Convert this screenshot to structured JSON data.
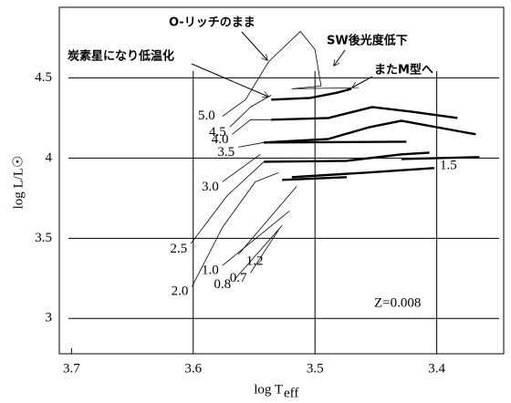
{
  "chart_data": {
    "type": "line",
    "x_label": "log T",
    "x_label_sub": "eff",
    "y_label": "log L/L☉",
    "xlim": [
      3.71,
      3.345
    ],
    "ylim": [
      2.78,
      4.94
    ],
    "xticks": [
      3.7,
      3.6,
      3.5,
      3.4
    ],
    "yticks": [
      3,
      3.5,
      4,
      4.5
    ],
    "grid": true,
    "annotations": [
      "O-リッチのまま",
      "SW後光度低下",
      "炭素星になり低温化",
      "またM型へ",
      "Z=0.008"
    ],
    "series": [
      {
        "name": "5.0",
        "color": "#000000",
        "line_width": "thin",
        "x": [
          3.576,
          3.557,
          3.538,
          3.512,
          3.5,
          3.495,
          3.519,
          3.47
        ],
        "y": [
          4.261,
          4.364,
          4.602,
          4.79,
          4.676,
          4.449,
          4.432,
          4.438
        ]
      },
      {
        "color": "#000000",
        "line_width": "thick",
        "x": [
          3.536,
          3.504,
          3.481,
          3.47
        ],
        "y": [
          4.364,
          4.375,
          4.409,
          4.432
        ]
      },
      {
        "name": "4.5",
        "color": "#000000",
        "line_width": "thin",
        "x": [
          3.57,
          3.553,
          3.536
        ],
        "y": [
          4.193,
          4.318,
          4.392
        ]
      },
      {
        "name": "4.0",
        "color": "#000000",
        "line_width": "thin",
        "x": [
          3.568,
          3.553,
          3.536
        ],
        "y": [
          4.148,
          4.239,
          4.239
        ]
      },
      {
        "color": "#000000",
        "line_width": "thick",
        "x": [
          3.536,
          3.489,
          3.453,
          3.421,
          3.383
        ],
        "y": [
          4.239,
          4.25,
          4.318,
          4.29,
          4.25
        ]
      },
      {
        "name": "3.5",
        "color": "#000000",
        "line_width": "thin",
        "x": [
          3.563,
          3.542
        ],
        "y": [
          4.068,
          4.097
        ]
      },
      {
        "color": "#000000",
        "line_width": "thick",
        "x": [
          3.542,
          3.489,
          3.455,
          3.429,
          3.368
        ],
        "y": [
          4.097,
          4.119,
          4.193,
          4.233,
          4.148
        ]
      },
      {
        "color": "#000000",
        "line_width": "thick",
        "x": [
          3.542,
          3.425
        ],
        "y": [
          4.097,
          4.102
        ]
      },
      {
        "name": "3.0",
        "color": "#000000",
        "line_width": "thin",
        "x": [
          3.576,
          3.545
        ],
        "y": [
          3.852,
          4.023
        ]
      },
      {
        "color": "#000000",
        "line_width": "thick",
        "x": [
          3.542,
          3.474,
          3.429,
          3.406
        ],
        "y": [
          3.977,
          3.983,
          4.023,
          4.034
        ]
      },
      {
        "color": "#000000",
        "line_width": "thick",
        "x": [
          3.429,
          3.365
        ],
        "y": [
          3.994,
          4.006
        ]
      },
      {
        "name": "2.5",
        "color": "#000000",
        "line_width": "thin",
        "x": [
          3.602,
          3.572,
          3.542
        ],
        "y": [
          3.466,
          3.767,
          3.977
        ]
      },
      {
        "name": "2.0",
        "color": "#000000",
        "line_width": "thin",
        "x": [
          3.601,
          3.576,
          3.549,
          3.53
        ],
        "y": [
          3.199,
          3.568,
          3.852,
          3.909
        ]
      },
      {
        "name": "1.5",
        "color": "#000000",
        "line_width": "thick",
        "x": [
          3.519,
          3.459,
          3.402
        ],
        "y": [
          3.881,
          3.909,
          3.938
        ]
      },
      {
        "name": "1.2",
        "color": "#000000",
        "line_width": "thin",
        "x": [
          3.563,
          3.515
        ],
        "y": [
          3.398,
          3.824
        ]
      },
      {
        "color": "#000000",
        "line_width": "thick",
        "x": [
          3.527,
          3.474
        ],
        "y": [
          3.864,
          3.881
        ]
      },
      {
        "name": "1.0",
        "color": "#000000",
        "line_width": "thin",
        "x": [
          3.576,
          3.521
        ],
        "y": [
          3.33,
          3.67
        ]
      },
      {
        "name": "0.8",
        "color": "#000000",
        "line_width": "thin",
        "x": [
          3.566,
          3.527
        ],
        "y": [
          3.244,
          3.58
        ]
      },
      {
        "name": "0.7",
        "color": "#000000",
        "line_width": "thin",
        "x": [
          3.553,
          3.53
        ],
        "y": [
          3.284,
          3.551
        ]
      }
    ]
  }
}
